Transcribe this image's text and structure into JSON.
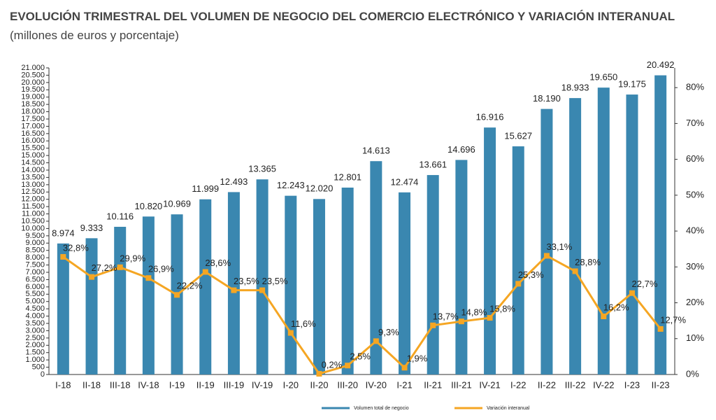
{
  "chart_data": {
    "type": "bar",
    "title": "EVOLUCIÓN TRIMESTRAL DEL VOLUMEN DE NEGOCIO DEL COMERCIO ELECTRÓNICO Y VARIACIÓN INTERANUAL",
    "title_units": "(millones de euros y porcentaje)",
    "categories": [
      "I-18",
      "II-18",
      "III-18",
      "IV-18",
      "I-19",
      "II-19",
      "III-19",
      "IV-19",
      "I-20",
      "II-20",
      "III-20",
      "IV-20",
      "I-21",
      "II-21",
      "III-21",
      "IV-21",
      "I-22",
      "II-22",
      "III-22",
      "IV-22",
      "I-23",
      "II-23"
    ],
    "series": [
      {
        "name": "Volumen total de negocio",
        "color": "#3a87b0",
        "type": "bar",
        "values": [
          8974,
          9333,
          10116,
          10820,
          10969,
          11999,
          12493,
          13365,
          12243,
          12020,
          12801,
          14613,
          12474,
          13661,
          14696,
          16916,
          15627,
          18190,
          18933,
          19650,
          19175,
          20492
        ],
        "value_labels": [
          "8.974",
          "9.333",
          "10.116",
          "10.820",
          "10.969",
          "11.999",
          "12.493",
          "13.365",
          "12.243",
          "12.020",
          "12.801",
          "14.613",
          "12.474",
          "13.661",
          "14.696",
          "16.916",
          "15.627",
          "18.190",
          "18.933",
          "19.650",
          "19.175",
          "20.492"
        ]
      },
      {
        "name": "Variación interanual",
        "color": "#f5a623",
        "type": "line",
        "axis": "y2",
        "values": [
          32.8,
          27.2,
          29.9,
          26.9,
          22.2,
          28.6,
          23.5,
          23.5,
          11.6,
          0.2,
          2.5,
          9.3,
          1.9,
          13.7,
          14.8,
          15.8,
          25.3,
          33.1,
          28.8,
          16.2,
          22.7,
          12.7
        ],
        "value_labels": [
          "32,8%",
          "27,2%",
          "29,9%",
          "26,9%",
          "22,2%",
          "28,6%",
          "23,5%",
          "23,5%",
          "11,6%",
          "0,2%",
          "2,5%",
          "9,3%",
          "1,9%",
          "13,7%",
          "14,8%",
          "15,8%",
          "25,3%",
          "33,1%",
          "28,8%",
          "16,2%",
          "22,7%",
          "12,7%"
        ]
      }
    ],
    "ylim": [
      0,
      21000
    ],
    "yticks": [
      0,
      500,
      {
        "value": 1000,
        "label": "1.000"
      },
      {
        "value": 1500,
        "label": "1.500"
      },
      {
        "value": 2000,
        "label": "2.000"
      },
      {
        "value": 2500,
        "label": "2.500"
      },
      {
        "value": 3000,
        "label": "3.000"
      },
      {
        "value": 3500,
        "label": "3.500"
      },
      {
        "value": 4000,
        "label": "4.000"
      },
      {
        "value": 4500,
        "label": "4.500"
      },
      {
        "value": 5000,
        "label": "5.000"
      },
      {
        "value": 5500,
        "label": "5.500"
      },
      {
        "value": 6000,
        "label": "6.000"
      },
      {
        "value": 6500,
        "label": "6.500"
      },
      {
        "value": 7000,
        "label": "7.000"
      },
      {
        "value": 7500,
        "label": "7.500"
      },
      {
        "value": 8000,
        "label": "8.000"
      },
      {
        "value": 8500,
        "label": "8.500"
      },
      {
        "value": 9000,
        "label": "9.000"
      },
      {
        "value": 9500,
        "label": "9.500"
      },
      {
        "value": 10000,
        "label": "10.000"
      },
      {
        "value": 10500,
        "label": "10.500"
      },
      {
        "value": 11000,
        "label": "11.000"
      },
      {
        "value": 11500,
        "label": "11.500"
      },
      {
        "value": 12000,
        "label": "12.000"
      },
      {
        "value": 12500,
        "label": "12.500"
      },
      {
        "value": 13000,
        "label": "13.000"
      },
      {
        "value": 13500,
        "label": "13.500"
      },
      {
        "value": 14000,
        "label": "14.000"
      },
      {
        "value": 14500,
        "label": "14.500"
      },
      {
        "value": 15000,
        "label": "15.000"
      },
      {
        "value": 15500,
        "label": "15.500"
      },
      {
        "value": 16000,
        "label": "16.000"
      },
      {
        "value": 16500,
        "label": "16.500"
      },
      {
        "value": 17000,
        "label": "17.000"
      },
      {
        "value": 17500,
        "label": "17.500"
      },
      {
        "value": 18000,
        "label": "18.000"
      },
      {
        "value": 18500,
        "label": "18.500"
      },
      {
        "value": 19000,
        "label": "19.000"
      },
      {
        "value": 19500,
        "label": "19.500"
      },
      {
        "value": 20000,
        "label": "20.000"
      },
      {
        "value": 20500,
        "label": "20.500"
      },
      {
        "value": 21000,
        "label": "21.000"
      }
    ],
    "y2lim": [
      0,
      85.5
    ],
    "y2ticks": [
      {
        "value": 0,
        "label": "0%"
      },
      {
        "value": 10,
        "label": "10%"
      },
      {
        "value": 20,
        "label": "20%"
      },
      {
        "value": 30,
        "label": "30%"
      },
      {
        "value": 40,
        "label": "40%"
      },
      {
        "value": 50,
        "label": "50%"
      },
      {
        "value": 60,
        "label": "60%"
      },
      {
        "value": 70,
        "label": "70%"
      },
      {
        "value": 80,
        "label": "80%"
      }
    ],
    "legend": "bottom"
  }
}
